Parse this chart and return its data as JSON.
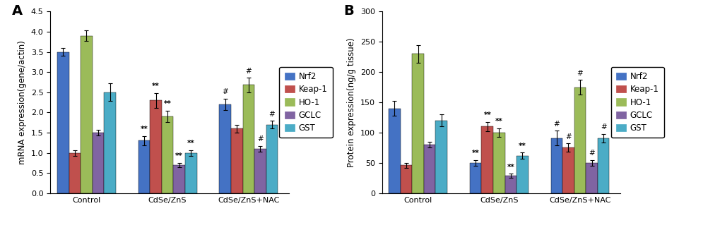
{
  "panel_A": {
    "title": "A",
    "ylabel": "mRNA expression(gene/actin)",
    "ylim": [
      0,
      4.5
    ],
    "yticks": [
      0,
      0.5,
      1.0,
      1.5,
      2.0,
      2.5,
      3.0,
      3.5,
      4.0,
      4.5
    ],
    "groups": [
      "Control",
      "CdSe/ZnS",
      "CdSe/ZnS+NAC"
    ],
    "series": [
      "Nrf2",
      "Keap-1",
      "HO-1",
      "GCLC",
      "GST"
    ],
    "values": [
      [
        3.5,
        1.0,
        3.9,
        1.5,
        2.5
      ],
      [
        1.3,
        2.3,
        1.9,
        0.7,
        1.0
      ],
      [
        2.2,
        1.6,
        2.68,
        1.1,
        1.7
      ]
    ],
    "errors": [
      [
        0.1,
        0.07,
        0.13,
        0.07,
        0.22
      ],
      [
        0.12,
        0.18,
        0.14,
        0.05,
        0.07
      ],
      [
        0.14,
        0.1,
        0.18,
        0.07,
        0.09
      ]
    ],
    "annotations": [
      [
        "",
        "",
        "",
        "",
        ""
      ],
      [
        "**",
        "**",
        "**",
        "**",
        "**"
      ],
      [
        "#",
        "",
        "#",
        "#",
        "#"
      ]
    ]
  },
  "panel_B": {
    "title": "B",
    "ylabel": "Protein expression(ng/g tissue)",
    "ylim": [
      0,
      300
    ],
    "yticks": [
      0,
      50,
      100,
      150,
      200,
      250,
      300
    ],
    "groups": [
      "Control",
      "CdSe/ZnS",
      "CdSe/ZnS+NAC"
    ],
    "series": [
      "Nrf2",
      "Keap-1",
      "HO-1",
      "GCLC",
      "GST"
    ],
    "values": [
      [
        140,
        46,
        230,
        80,
        120
      ],
      [
        50,
        110,
        100,
        29,
        62
      ],
      [
        91,
        75,
        175,
        50,
        91
      ]
    ],
    "errors": [
      [
        12,
        4,
        15,
        5,
        10
      ],
      [
        5,
        8,
        7,
        3,
        5
      ],
      [
        12,
        7,
        12,
        5,
        7
      ]
    ],
    "annotations": [
      [
        "",
        "",
        "",
        "",
        ""
      ],
      [
        "**",
        "**",
        "**",
        "**",
        "**"
      ],
      [
        "#",
        "#",
        "#",
        "#",
        "#"
      ]
    ]
  },
  "colors": [
    "#4472C4",
    "#C0504D",
    "#9BBB59",
    "#8064A2",
    "#4BACC6"
  ],
  "legend_labels": [
    "Nrf2",
    "Keap-1",
    "HO-1",
    "GCLC",
    "GST"
  ],
  "bar_width": 0.13,
  "background_color": "#FFFFFF",
  "annotation_fontsize": 7.5,
  "tick_fontsize": 8,
  "label_fontsize": 8.5,
  "legend_fontsize": 8.5,
  "panel_label_fontsize": 14
}
